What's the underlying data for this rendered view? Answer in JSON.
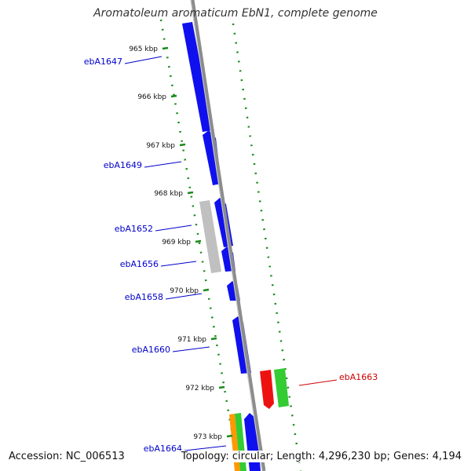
{
  "title": "Aromatoleum aromaticum EbN1, complete genome",
  "footer": {
    "accession": "Accession: NC_006513",
    "summary": "Topology: circular; Length: 4,296,230 bp; Genes: 4,194"
  },
  "colors": {
    "backbone": "#8c8c8c",
    "tick": "#1a8a1a",
    "gene_blue": "#1010ee",
    "gene_gray": "#c0c0c0",
    "gene_red": "#ee1111",
    "gene_green": "#33cc33",
    "gene_orange": "#ff9900",
    "label_blue": "#0000cc",
    "label_red": "#cc0000"
  },
  "ticks": [
    {
      "label": "965 kbp"
    },
    {
      "label": "966 kbp"
    },
    {
      "label": "967 kbp"
    },
    {
      "label": "968 kbp"
    },
    {
      "label": "969 kbp"
    },
    {
      "label": "970 kbp"
    },
    {
      "label": "971 kbp"
    },
    {
      "label": "972 kbp"
    },
    {
      "label": "973 kbp"
    }
  ],
  "gene_labels": [
    {
      "text": "ebA1647",
      "color": "blue"
    },
    {
      "text": "ebA1649",
      "color": "blue"
    },
    {
      "text": "ebA1652",
      "color": "blue"
    },
    {
      "text": "ebA1656",
      "color": "blue"
    },
    {
      "text": "ebA1658",
      "color": "blue"
    },
    {
      "text": "ebA1660",
      "color": "blue"
    },
    {
      "text": "ebA1663",
      "color": "red"
    },
    {
      "text": "ebA1664",
      "color": "blue"
    }
  ]
}
